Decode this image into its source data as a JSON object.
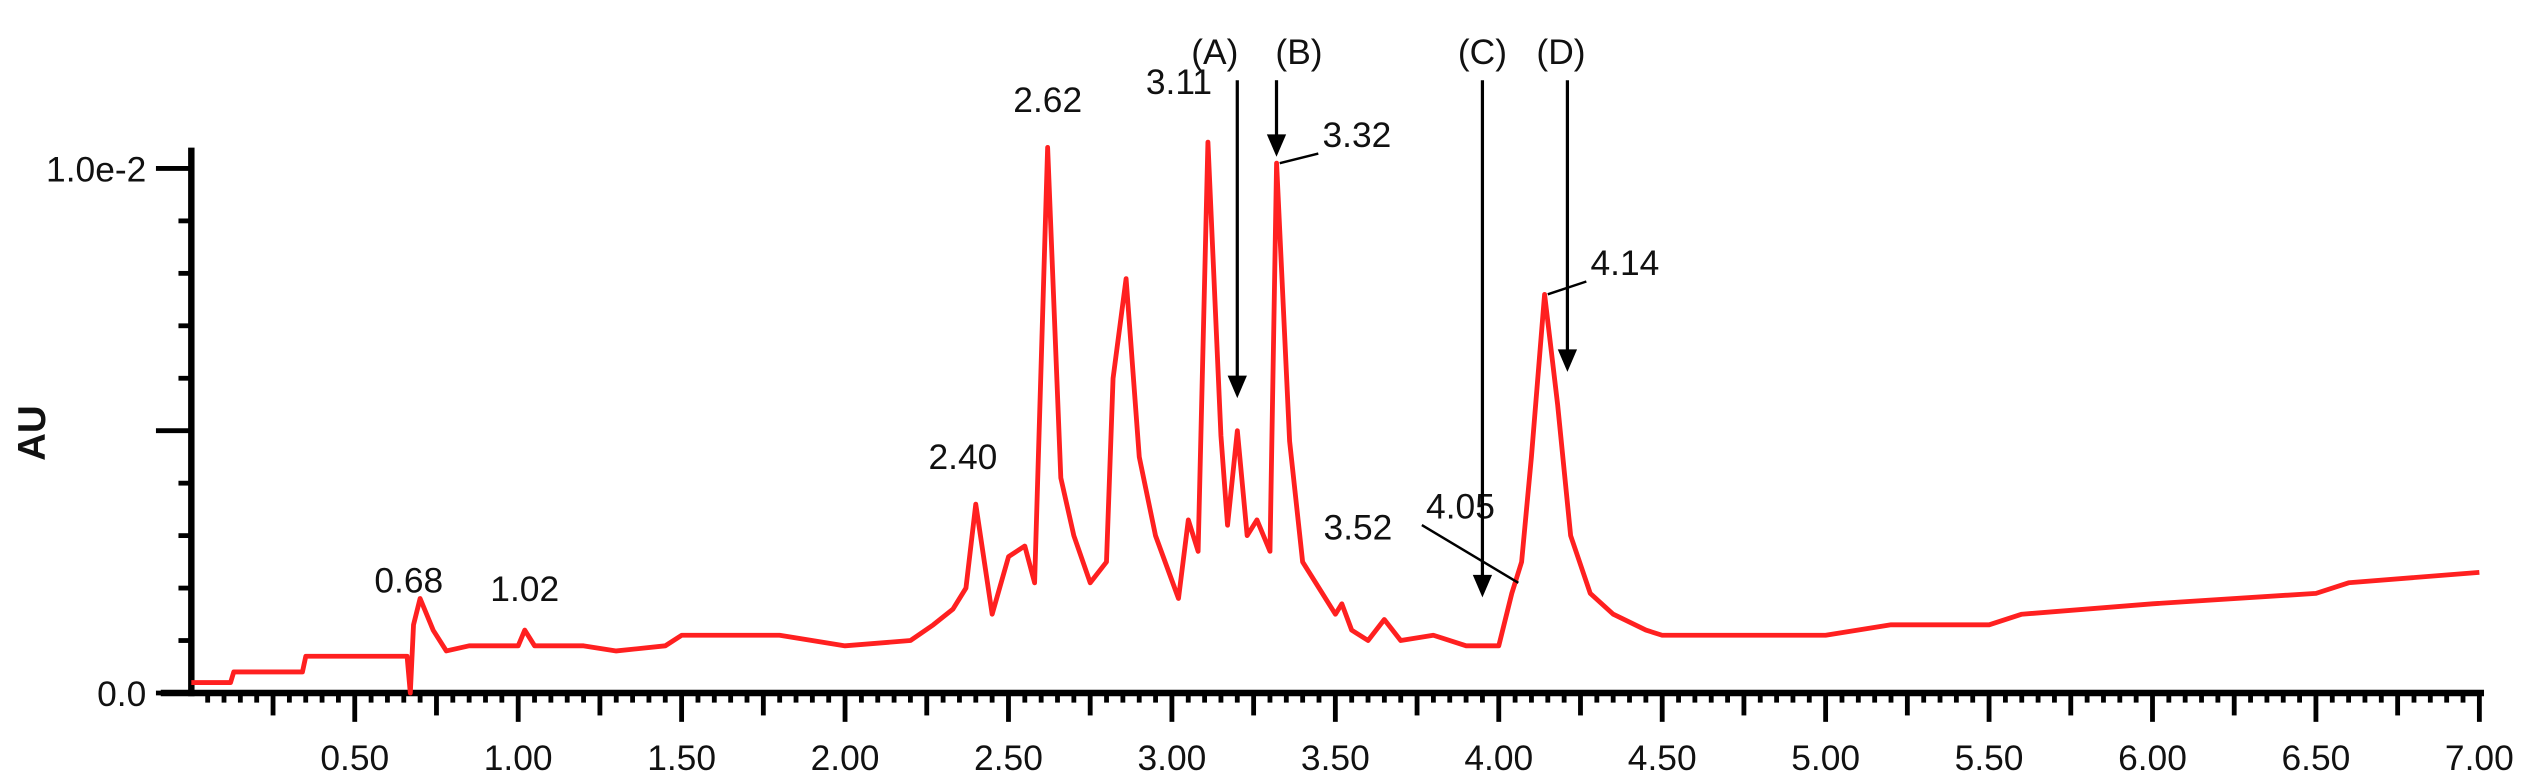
{
  "chart_data": {
    "type": "line",
    "title": "",
    "xlabel": "",
    "ylabel": "AU",
    "xlim": [
      0,
      7.0
    ],
    "ylim": [
      0,
      0.0105
    ],
    "x_tick_labels": [
      "0.50",
      "1.00",
      "1.50",
      "2.00",
      "2.50",
      "3.00",
      "3.50",
      "4.00",
      "4.50",
      "5.00",
      "5.50",
      "6.00",
      "6.50",
      "7.00"
    ],
    "x_ticks": [
      0.5,
      1.0,
      1.5,
      2.0,
      2.5,
      3.0,
      3.5,
      4.0,
      4.5,
      5.0,
      5.5,
      6.0,
      6.5,
      7.0
    ],
    "y_tick_labels": [
      "0.0",
      "1.0e-2"
    ],
    "y_ticks": [
      0,
      0.01
    ],
    "grid": false,
    "line_color": "#ff2020",
    "series": [
      {
        "x": [
          0.0,
          0.12,
          0.13,
          0.34,
          0.35,
          0.66,
          0.67,
          0.68,
          0.7,
          0.74,
          0.78,
          0.85,
          0.95,
          1.0,
          1.02,
          1.05,
          1.2,
          1.3,
          1.45,
          1.5,
          1.8,
          2.0,
          2.2,
          2.27,
          2.33,
          2.37,
          2.4,
          2.45,
          2.5,
          2.55,
          2.58,
          2.62,
          2.66,
          2.7,
          2.75,
          2.8,
          2.82,
          2.86,
          2.9,
          2.95,
          3.02,
          3.05,
          3.08,
          3.11,
          3.15,
          3.17,
          3.2,
          3.23,
          3.26,
          3.3,
          3.32,
          3.36,
          3.4,
          3.45,
          3.5,
          3.52,
          3.55,
          3.6,
          3.65,
          3.7,
          3.8,
          3.9,
          4.0,
          4.04,
          4.07,
          4.1,
          4.14,
          4.18,
          4.22,
          4.28,
          4.35,
          4.45,
          4.5,
          5.0,
          5.2,
          5.5,
          5.6,
          6.0,
          6.5,
          6.6,
          7.0
        ],
        "y": [
          0.0002,
          0.0002,
          0.0004,
          0.0004,
          0.0007,
          0.0007,
          0.0,
          0.0013,
          0.0018,
          0.0012,
          0.0008,
          0.0009,
          0.0009,
          0.0009,
          0.0012,
          0.0009,
          0.0009,
          0.0008,
          0.0009,
          0.0011,
          0.0011,
          0.0009,
          0.001,
          0.0013,
          0.0016,
          0.002,
          0.0036,
          0.0015,
          0.0026,
          0.0028,
          0.0021,
          0.0104,
          0.0041,
          0.003,
          0.0021,
          0.0025,
          0.006,
          0.0079,
          0.0045,
          0.003,
          0.0018,
          0.0033,
          0.0027,
          0.0105,
          0.0049,
          0.0032,
          0.005,
          0.003,
          0.0033,
          0.0027,
          0.0101,
          0.0048,
          0.0025,
          0.002,
          0.0015,
          0.0017,
          0.0012,
          0.001,
          0.0014,
          0.001,
          0.0011,
          0.0009,
          0.0009,
          0.0019,
          0.0025,
          0.0045,
          0.0076,
          0.0055,
          0.003,
          0.0019,
          0.0015,
          0.0012,
          0.0011,
          0.0011,
          0.0013,
          0.0013,
          0.0015,
          0.0017,
          0.0019,
          0.0021,
          0.0023
        ]
      }
    ],
    "peak_labels": [
      {
        "label": "0.68",
        "x": 0.68
      },
      {
        "label": "1.02",
        "x": 1.02
      },
      {
        "label": "2.40",
        "x": 2.4
      },
      {
        "label": "2.62",
        "x": 2.62
      },
      {
        "label": "3.11",
        "x": 3.11
      },
      {
        "label": "3.32",
        "x": 3.32
      },
      {
        "label": "3.52",
        "x": 3.52
      },
      {
        "label": "4.05",
        "x": 4.05
      },
      {
        "label": "4.14",
        "x": 4.14
      }
    ],
    "arrow_annotations": [
      {
        "label": "(A)",
        "x": 3.2,
        "y": 0.0055
      },
      {
        "label": "(B)",
        "x": 3.32,
        "y": 0.0101
      },
      {
        "label": "(C)",
        "x": 3.95,
        "y": 0.0017
      },
      {
        "label": "(D)",
        "x": 4.21,
        "y": 0.006
      }
    ]
  }
}
